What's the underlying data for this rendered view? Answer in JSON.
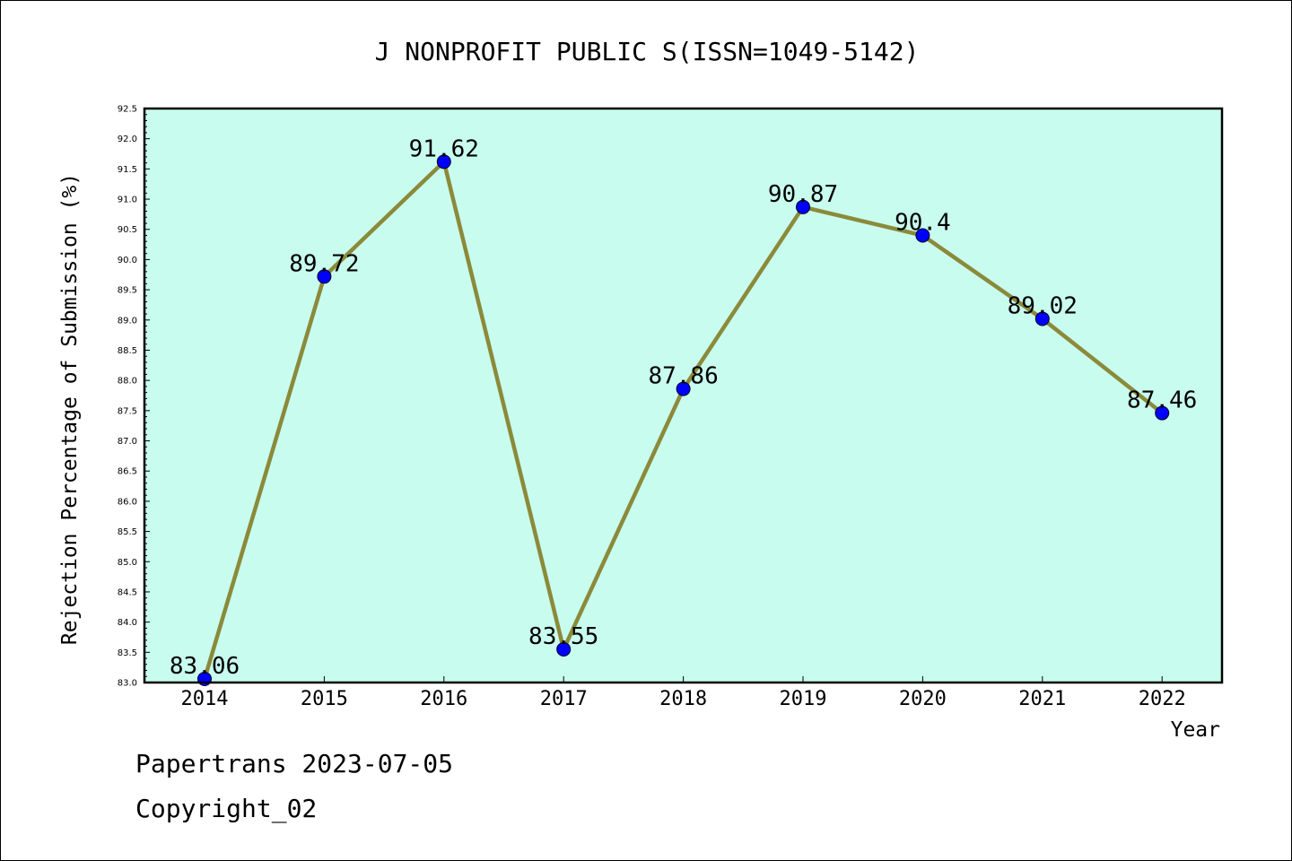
{
  "footer": {
    "line1": "Papertrans 2023-07-05",
    "line2": "Copyright_02"
  },
  "colors": {
    "plot_background": "#c8fcee",
    "line": "#8b8a3a",
    "marker": "#0000ff"
  },
  "chart_data": {
    "type": "line",
    "title": "J NONPROFIT PUBLIC S(ISSN=1049-5142)",
    "xlabel": "Year",
    "ylabel": "Rejection Percentage of Submission (%)",
    "categories": [
      "2014",
      "2015",
      "2016",
      "2017",
      "2018",
      "2019",
      "2020",
      "2021",
      "2022"
    ],
    "values": [
      83.06,
      89.72,
      91.62,
      83.55,
      87.86,
      90.87,
      90.4,
      89.02,
      87.46
    ],
    "data_labels": [
      "83.06",
      "89.72",
      "91.62",
      "83.55",
      "87.86",
      "90.87",
      "90.4",
      "89.02",
      "87.46"
    ],
    "ylim": [
      83.0,
      92.5
    ],
    "y_ticks": [
      "83.0",
      "83.5",
      "84.0",
      "84.5",
      "85.0",
      "85.5",
      "86.0",
      "86.5",
      "87.0",
      "87.5",
      "88.0",
      "88.5",
      "89.0",
      "89.5",
      "90.0",
      "90.5",
      "91.0",
      "91.5",
      "92.0",
      "92.5"
    ],
    "grid": false,
    "legend": "none"
  }
}
